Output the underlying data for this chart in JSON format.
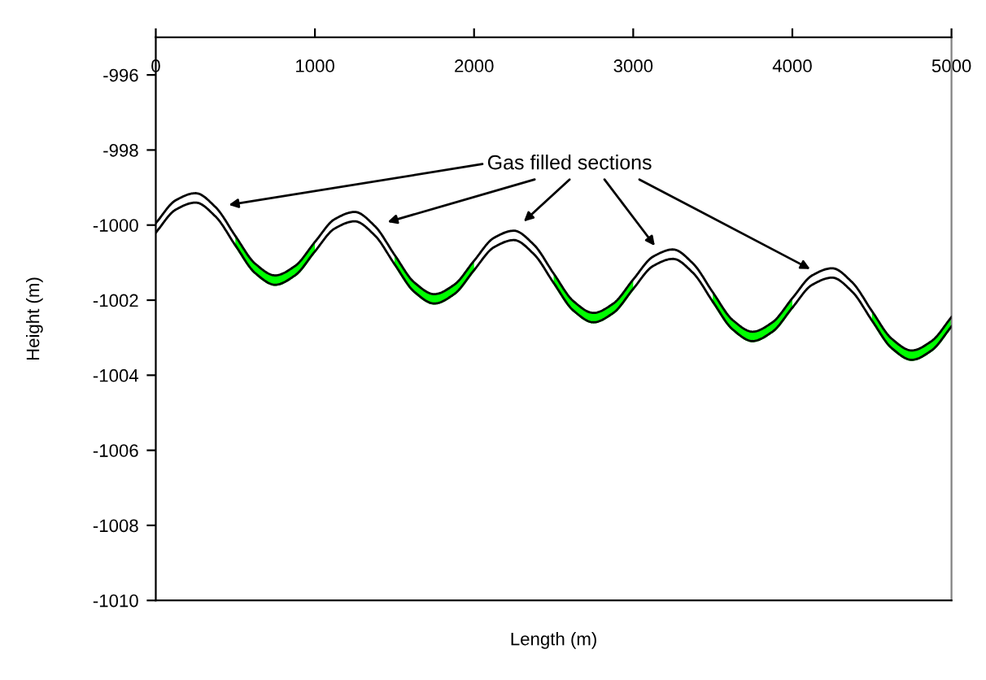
{
  "chart_data": {
    "type": "line",
    "xlabel": "Length (m)",
    "ylabel": "Height (m)",
    "x": [
      0,
      125,
      250,
      375,
      500,
      625,
      750,
      875,
      1000,
      1125,
      1250,
      1375,
      1500,
      1625,
      1750,
      1875,
      2000,
      2125,
      2250,
      2375,
      2500,
      2625,
      2750,
      2875,
      3000,
      3125,
      3250,
      3375,
      3500,
      3625,
      3750,
      3875,
      4000,
      4125,
      4250,
      4375,
      4500,
      4625,
      4750,
      4875,
      5000
    ],
    "series": [
      {
        "color": "#000000",
        "values": [
          -999.95,
          -999.34,
          -999.15,
          -999.52,
          -1000.29,
          -1001.03,
          -1001.34,
          -1001.09,
          -1000.45,
          -999.84,
          -999.65,
          -1000.02,
          -1000.79,
          -1001.53,
          -1001.84,
          -1001.59,
          -1000.95,
          -1000.34,
          -1000.15,
          -1000.52,
          -1001.29,
          -1002.03,
          -1002.34,
          -1002.09,
          -1001.45,
          -1000.84,
          -1000.65,
          -1001.02,
          -1001.79,
          -1002.53,
          -1002.84,
          -1002.59,
          -1001.95,
          -1001.34,
          -1001.15,
          -1001.52,
          -1002.29,
          -1003.03,
          -1003.34,
          -1003.09,
          -1002.45
        ]
      },
      {
        "color": "#000000",
        "values": [
          -1000.2,
          -999.59,
          -999.4,
          -999.77,
          -1000.54,
          -1001.28,
          -1001.59,
          -1001.34,
          -1000.7,
          -1000.09,
          -999.9,
          -1000.27,
          -1001.04,
          -1001.78,
          -1002.09,
          -1001.84,
          -1001.2,
          -1000.59,
          -1000.4,
          -1000.77,
          -1001.54,
          -1002.28,
          -1002.59,
          -1002.34,
          -1001.7,
          -1001.09,
          -1000.9,
          -1001.27,
          -1002.04,
          -1002.78,
          -1003.09,
          -1002.84,
          -1002.2,
          -1001.59,
          -1001.4,
          -1001.77,
          -1002.54,
          -1003.28,
          -1003.59,
          -1003.34,
          -1002.7
        ]
      },
      {
        "color": "#00ff00",
        "values": [
          null,
          null,
          null,
          null,
          -1000.54,
          -1001.28,
          -1001.59,
          -1001.34,
          -1000.7,
          null,
          null,
          null,
          -1001.04,
          -1001.78,
          -1002.09,
          -1001.84,
          -1001.2,
          null,
          null,
          null,
          -1001.54,
          -1002.28,
          -1002.59,
          -1002.34,
          -1001.7,
          null,
          null,
          null,
          -1002.04,
          -1002.78,
          -1003.09,
          -1002.84,
          -1002.2,
          null,
          null,
          null,
          -1002.54,
          -1003.28,
          -1003.59,
          -1003.34,
          -1002.7
        ],
        "lower": [
          null,
          null,
          null,
          null,
          -1000.54,
          -1001.28,
          -1001.59,
          -1001.34,
          -1000.7,
          null,
          null,
          null,
          -1001.04,
          -1001.78,
          -1002.09,
          -1001.84,
          -1001.2,
          null,
          null,
          null,
          -1001.54,
          -1002.28,
          -1002.59,
          -1002.34,
          -1001.7,
          null,
          null,
          null,
          -1002.04,
          -1002.78,
          -1003.09,
          -1002.84,
          -1002.2,
          null,
          null,
          null,
          -1002.54,
          -1003.28,
          -1003.59,
          -1003.34,
          -1002.7
        ],
        "upper": [
          null,
          null,
          null,
          null,
          -1000.29,
          -1001.03,
          -1001.34,
          -1001.09,
          -1000.45,
          null,
          null,
          null,
          -1000.79,
          -1001.53,
          -1001.84,
          -1001.59,
          -1000.95,
          null,
          null,
          null,
          -1001.29,
          -1002.03,
          -1002.34,
          -1002.09,
          -1001.45,
          null,
          null,
          null,
          -1001.79,
          -1002.53,
          -1002.84,
          -1002.59,
          -1001.95,
          null,
          null,
          null,
          -1002.29,
          -1003.03,
          -1003.34,
          -1003.09,
          -1002.45
        ]
      }
    ],
    "xlim": [
      0,
      5000
    ],
    "xticks": [
      0,
      1000,
      2000,
      3000,
      4000,
      5000
    ],
    "ylim": [
      -1010,
      -995
    ],
    "yticks": [
      -1010,
      -1008,
      -1006,
      -1004,
      -1002,
      -1000,
      -998,
      -996
    ],
    "grid": false,
    "marker": "none",
    "line_style": "solid",
    "annotations": [
      "Gas filled sections"
    ]
  }
}
